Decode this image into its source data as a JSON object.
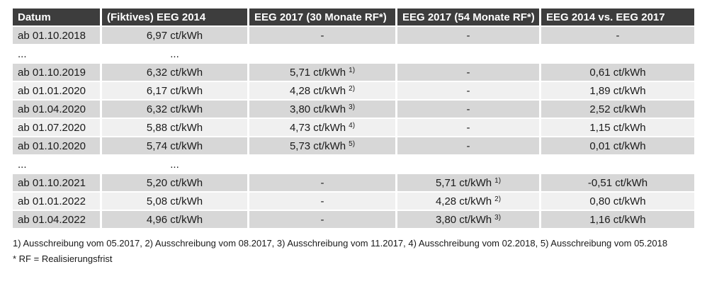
{
  "colors": {
    "header_bg": "#3d3d3d",
    "header_text": "#ffffff",
    "row_dark": "#d7d7d7",
    "row_light": "#f0f0f0",
    "text": "#1a1a1a"
  },
  "table": {
    "columns": [
      {
        "label": "Datum"
      },
      {
        "label": "(Fiktives) EEG 2014"
      },
      {
        "label": "EEG 2017 (30 Monate RF*)"
      },
      {
        "label": "EEG 2017 (54 Monate RF*)"
      },
      {
        "label": "EEG 2014 vs. EEG 2017"
      }
    ],
    "rows": [
      {
        "type": "data",
        "shade": "dark",
        "cells": [
          "ab 01.10.2018",
          "6,97 ct/kWh",
          "-",
          "-",
          "-"
        ]
      },
      {
        "type": "ellipsis",
        "shade": "none",
        "cells": [
          "...",
          "...",
          "",
          "",
          ""
        ]
      },
      {
        "type": "data",
        "shade": "dark",
        "cells": [
          "ab 01.10.2019",
          "6,32 ct/kWh",
          {
            "text": "5,71 ct/kWh",
            "sup": "1)"
          },
          "-",
          "0,61 ct/kWh"
        ]
      },
      {
        "type": "data",
        "shade": "light",
        "cells": [
          "ab 01.01.2020",
          "6,17 ct/kWh",
          {
            "text": "4,28 ct/kWh",
            "sup": "2)"
          },
          "-",
          "1,89 ct/kWh"
        ]
      },
      {
        "type": "data",
        "shade": "dark",
        "cells": [
          "ab 01.04.2020",
          "6,32 ct/kWh",
          {
            "text": "3,80 ct/kWh",
            "sup": "3)"
          },
          "-",
          "2,52 ct/kWh"
        ]
      },
      {
        "type": "data",
        "shade": "light",
        "cells": [
          "ab 01.07.2020",
          "5,88 ct/kWh",
          {
            "text": "4,73 ct/kWh",
            "sup": "4)"
          },
          "-",
          "1,15 ct/kWh"
        ]
      },
      {
        "type": "data",
        "shade": "dark",
        "cells": [
          "ab 01.10.2020",
          "5,74 ct/kWh",
          {
            "text": "5,73 ct/kWh",
            "sup": "5)"
          },
          "-",
          "0,01 ct/kWh"
        ]
      },
      {
        "type": "ellipsis",
        "shade": "none",
        "cells": [
          "...",
          "...",
          "",
          "",
          ""
        ]
      },
      {
        "type": "data",
        "shade": "dark",
        "cells": [
          "ab 01.10.2021",
          "5,20 ct/kWh",
          "-",
          {
            "text": "5,71 ct/kWh",
            "sup": "1)"
          },
          "-0,51 ct/kWh"
        ]
      },
      {
        "type": "data",
        "shade": "light",
        "cells": [
          "ab 01.01.2022",
          "5,08 ct/kWh",
          "-",
          {
            "text": "4,28 ct/kWh",
            "sup": "2)"
          },
          "0,80 ct/kWh"
        ]
      },
      {
        "type": "data",
        "shade": "dark",
        "cells": [
          "ab 01.04.2022",
          "4,96 ct/kWh",
          "-",
          {
            "text": "3,80 ct/kWh",
            "sup": "3)"
          },
          "1,16 ct/kWh"
        ]
      }
    ]
  },
  "footnotes": {
    "line1": "1) Ausschreibung vom 05.2017, 2) Ausschreibung vom 08.2017, 3) Ausschreibung vom 11.2017, 4) Ausschreibung vom 02.2018, 5) Ausschreibung vom 05.2018",
    "line2": "* RF = Realisierungsfrist"
  }
}
